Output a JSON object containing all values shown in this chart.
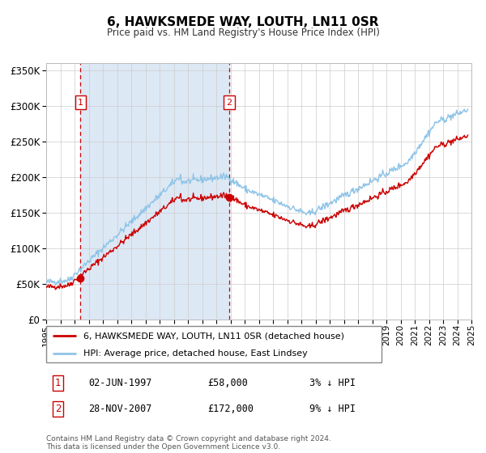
{
  "title": "6, HAWKSMEDE WAY, LOUTH, LN11 0SR",
  "subtitle": "Price paid vs. HM Land Registry's House Price Index (HPI)",
  "legend_line1": "6, HAWKSMEDE WAY, LOUTH, LN11 0SR (detached house)",
  "legend_line2": "HPI: Average price, detached house, East Lindsey",
  "footnote1": "Contains HM Land Registry data © Crown copyright and database right 2024.",
  "footnote2": "This data is licensed under the Open Government Licence v3.0.",
  "sale1_label": "1",
  "sale1_date": "02-JUN-1997",
  "sale1_price": "£58,000",
  "sale1_hpi": "3% ↓ HPI",
  "sale2_label": "2",
  "sale2_date": "28-NOV-2007",
  "sale2_price": "£172,000",
  "sale2_hpi": "9% ↓ HPI",
  "sale1_year": 1997.42,
  "sale1_value": 58000,
  "sale2_year": 2007.91,
  "sale2_value": 172000,
  "hpi_color": "#8ec4e8",
  "price_color": "#cc0000",
  "sale_dot_color": "#cc0000",
  "bg_color": "#dde8f5",
  "grid_color": "#cccccc",
  "ylim_max": 360000,
  "xlim_left": 1995,
  "xlim_right": 2025
}
